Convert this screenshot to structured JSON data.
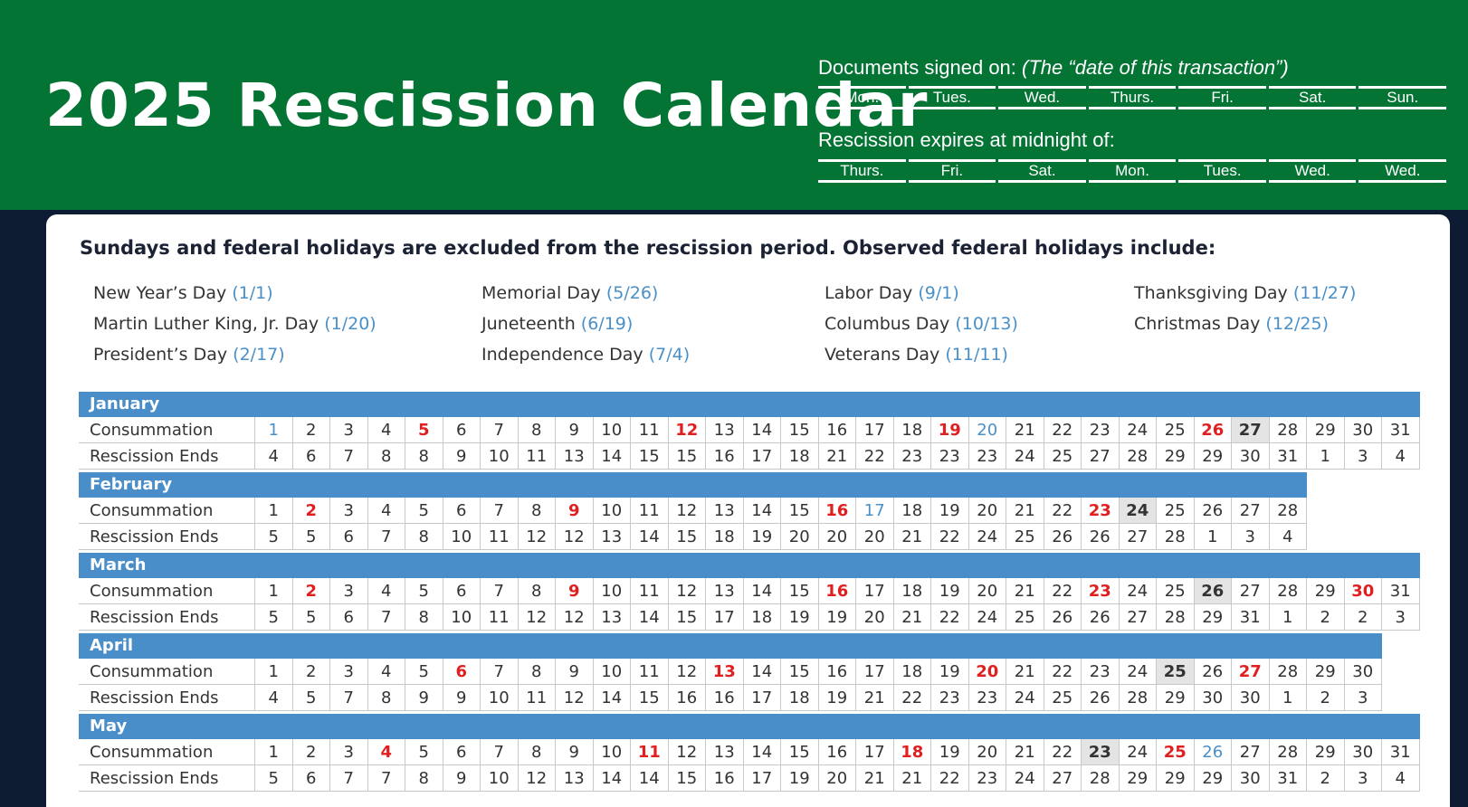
{
  "header": {
    "title": "2025 Rescission Calendar",
    "signed_label": "Documents signed on:",
    "signed_note": "(The “date of this transaction”)",
    "signed_days": [
      "Mon.",
      "Tues.",
      "Wed.",
      "Thurs.",
      "Fri.",
      "Sat.",
      "Sun."
    ],
    "expires_label": "Rescission expires at midnight of:",
    "expires_days": [
      "Thurs.",
      "Fri.",
      "Sat.",
      "Mon.",
      "Tues.",
      "Wed.",
      "Wed."
    ]
  },
  "card": {
    "title": "Sundays and federal holidays are excluded from the rescission period. Observed federal holidays include:",
    "holidays": [
      [
        {
          "name": "New Year’s Day",
          "date": "(1/1)"
        },
        {
          "name": "Martin Luther King, Jr. Day",
          "date": "(1/20)"
        },
        {
          "name": "President’s Day",
          "date": "(2/17)"
        }
      ],
      [
        {
          "name": "Memorial Day",
          "date": "(5/26)"
        },
        {
          "name": "Juneteenth",
          "date": "(6/19)"
        },
        {
          "name": "Independence Day",
          "date": "(7/4)"
        }
      ],
      [
        {
          "name": "Labor Day",
          "date": "(9/1)"
        },
        {
          "name": "Columbus Day",
          "date": "(10/13)"
        },
        {
          "name": "Veterans Day",
          "date": "(11/11)"
        }
      ],
      [
        {
          "name": "Thanksgiving Day",
          "date": "(11/27)"
        },
        {
          "name": "Christmas Day",
          "date": "(12/25)"
        }
      ]
    ]
  },
  "row_labels": {
    "consummation": "Consummation",
    "rescission": "Rescission Ends"
  },
  "months": [
    {
      "name": "January",
      "consummation": [
        "1",
        "2",
        "3",
        "4",
        "5",
        "6",
        "7",
        "8",
        "9",
        "10",
        "11",
        "12",
        "13",
        "14",
        "15",
        "16",
        "17",
        "18",
        "19",
        "20",
        "21",
        "22",
        "23",
        "24",
        "25",
        "26",
        "27",
        "28",
        "29",
        "30",
        "31"
      ],
      "rescission": [
        "4",
        "6",
        "7",
        "8",
        "8",
        "9",
        "10",
        "11",
        "13",
        "14",
        "15",
        "15",
        "16",
        "17",
        "18",
        "21",
        "22",
        "23",
        "23",
        "23",
        "24",
        "25",
        "27",
        "28",
        "29",
        "29",
        "30",
        "31",
        "1",
        "3",
        "4"
      ],
      "red": [
        5,
        12,
        19,
        26
      ],
      "blue": [
        1,
        20
      ],
      "gray": [
        27
      ]
    },
    {
      "name": "February",
      "consummation": [
        "1",
        "2",
        "3",
        "4",
        "5",
        "6",
        "7",
        "8",
        "9",
        "10",
        "11",
        "12",
        "13",
        "14",
        "15",
        "16",
        "17",
        "18",
        "19",
        "20",
        "21",
        "22",
        "23",
        "24",
        "25",
        "26",
        "27",
        "28"
      ],
      "rescission": [
        "5",
        "5",
        "6",
        "7",
        "8",
        "10",
        "11",
        "12",
        "12",
        "13",
        "14",
        "15",
        "18",
        "19",
        "20",
        "20",
        "20",
        "21",
        "22",
        "24",
        "25",
        "26",
        "26",
        "27",
        "28",
        "1",
        "3",
        "4"
      ],
      "red": [
        2,
        9,
        16,
        23
      ],
      "blue": [
        17
      ],
      "gray": [
        24
      ]
    },
    {
      "name": "March",
      "consummation": [
        "1",
        "2",
        "3",
        "4",
        "5",
        "6",
        "7",
        "8",
        "9",
        "10",
        "11",
        "12",
        "13",
        "14",
        "15",
        "16",
        "17",
        "18",
        "19",
        "20",
        "21",
        "22",
        "23",
        "24",
        "25",
        "26",
        "27",
        "28",
        "29",
        "30",
        "31"
      ],
      "rescission": [
        "5",
        "5",
        "6",
        "7",
        "8",
        "10",
        "11",
        "12",
        "12",
        "13",
        "14",
        "15",
        "17",
        "18",
        "19",
        "19",
        "20",
        "21",
        "22",
        "24",
        "25",
        "26",
        "26",
        "27",
        "28",
        "29",
        "31",
        "1",
        "2",
        "2",
        "3"
      ],
      "red": [
        2,
        9,
        16,
        23,
        30
      ],
      "blue": [],
      "gray": [
        26
      ]
    },
    {
      "name": "April",
      "consummation": [
        "1",
        "2",
        "3",
        "4",
        "5",
        "6",
        "7",
        "8",
        "9",
        "10",
        "11",
        "12",
        "13",
        "14",
        "15",
        "16",
        "17",
        "18",
        "19",
        "20",
        "21",
        "22",
        "23",
        "24",
        "25",
        "26",
        "27",
        "28",
        "29",
        "30"
      ],
      "rescission": [
        "4",
        "5",
        "7",
        "8",
        "9",
        "9",
        "10",
        "11",
        "12",
        "14",
        "15",
        "16",
        "16",
        "17",
        "18",
        "19",
        "21",
        "22",
        "23",
        "23",
        "24",
        "25",
        "26",
        "28",
        "29",
        "30",
        "30",
        "1",
        "2",
        "3"
      ],
      "red": [
        6,
        13,
        20,
        27
      ],
      "blue": [],
      "gray": [
        25
      ]
    },
    {
      "name": "May",
      "consummation": [
        "1",
        "2",
        "3",
        "4",
        "5",
        "6",
        "7",
        "8",
        "9",
        "10",
        "11",
        "12",
        "13",
        "14",
        "15",
        "16",
        "17",
        "18",
        "19",
        "20",
        "21",
        "22",
        "23",
        "24",
        "25",
        "26",
        "27",
        "28",
        "29",
        "30",
        "31"
      ],
      "rescission": [
        "5",
        "6",
        "7",
        "7",
        "8",
        "9",
        "10",
        "12",
        "13",
        "14",
        "14",
        "15",
        "16",
        "17",
        "19",
        "20",
        "21",
        "21",
        "22",
        "23",
        "24",
        "27",
        "28",
        "29",
        "29",
        "29",
        "30",
        "31",
        "2",
        "3",
        "4"
      ],
      "red": [
        4,
        11,
        18,
        25
      ],
      "blue": [
        26
      ],
      "gray": [
        23
      ]
    }
  ]
}
